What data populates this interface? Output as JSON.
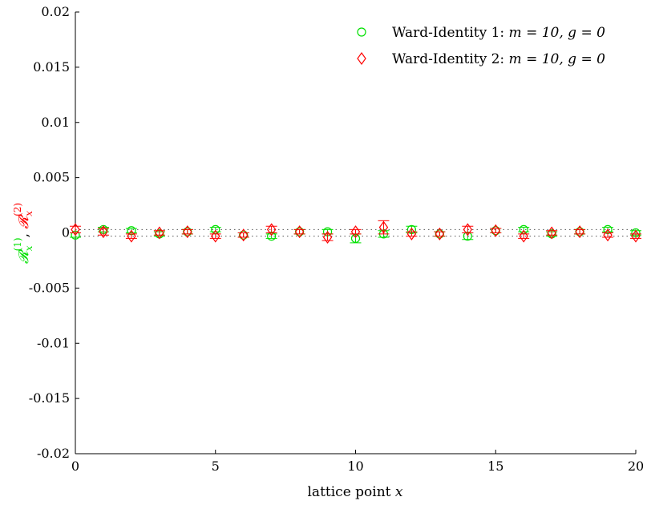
{
  "chart_data": {
    "type": "scatter",
    "xlabel": {
      "text": "lattice point ",
      "var": "x"
    },
    "ylabel": {
      "r1": "𝓡",
      "r1_sub": "x",
      "r1_sup": "(1)",
      "sep": ", ",
      "r2": "𝓡",
      "r2_sub": "x",
      "r2_sup": "(2)"
    },
    "xlim": [
      0,
      20
    ],
    "ylim": [
      -0.02,
      0.02
    ],
    "xticks": [
      0,
      5,
      10,
      15,
      20
    ],
    "xtick_labels": [
      "0",
      "5",
      "10",
      "15",
      "20"
    ],
    "yticks": [
      0.02,
      0.015,
      0.01,
      0.005,
      0,
      -0.005,
      -0.01,
      -0.015,
      -0.02
    ],
    "ytick_labels": [
      "0.02",
      "0.015",
      "0.01",
      "0.005",
      "0",
      "-0.005",
      "-0.01",
      "-0.015",
      "-0.02"
    ],
    "reference_lines": [
      0.0003,
      -0.0003
    ],
    "legend_placement": "top-right",
    "series": [
      {
        "name_prefix": "Ward-Identity 1: ",
        "name_math": "m = 10,  g = 0",
        "marker": "circle",
        "color": "#00e000",
        "x": [
          0,
          1,
          2,
          3,
          4,
          5,
          6,
          7,
          8,
          9,
          10,
          11,
          12,
          13,
          14,
          15,
          16,
          17,
          18,
          19,
          20
        ],
        "y": [
          -0.0002,
          0.0003,
          0.0002,
          -0.0001,
          0.0001,
          0.0003,
          -0.0002,
          -0.0003,
          0.0001,
          0.0001,
          -0.0005,
          -0.0001,
          0.0003,
          -0.0001,
          -0.0003,
          0.0002,
          0.0003,
          -0.0001,
          0.0001,
          0.0003,
          0.0
        ],
        "err": [
          0.0002,
          0.0002,
          0.0002,
          0.0002,
          0.0002,
          0.0002,
          0.0002,
          0.0002,
          0.0002,
          0.0002,
          0.0004,
          0.0003,
          0.0003,
          0.0002,
          0.0003,
          0.0002,
          0.0002,
          0.0002,
          0.0002,
          0.0002,
          0.0002
        ]
      },
      {
        "name_prefix": "Ward-Identity 2: ",
        "name_math": "m = 10,  g = 0",
        "marker": "diamond",
        "color": "#ff0000",
        "x": [
          0,
          1,
          2,
          3,
          4,
          5,
          6,
          7,
          8,
          9,
          10,
          11,
          12,
          13,
          14,
          15,
          16,
          17,
          18,
          19,
          20
        ],
        "y": [
          0.0003,
          0.0001,
          -0.0003,
          0.0,
          0.0001,
          -0.0003,
          -0.0002,
          0.0003,
          0.0001,
          -0.0004,
          0.0001,
          0.0005,
          -0.0001,
          -0.0001,
          0.0003,
          0.0002,
          -0.0003,
          0.0,
          0.0001,
          -0.0002,
          -0.0003
        ],
        "err": [
          0.0003,
          0.0003,
          0.0002,
          0.0002,
          0.0002,
          0.0002,
          0.0002,
          0.0003,
          0.0002,
          0.0003,
          0.0002,
          0.0006,
          0.0002,
          0.0002,
          0.0003,
          0.0002,
          0.0002,
          0.0002,
          0.0002,
          0.0002,
          0.0002
        ]
      }
    ]
  }
}
